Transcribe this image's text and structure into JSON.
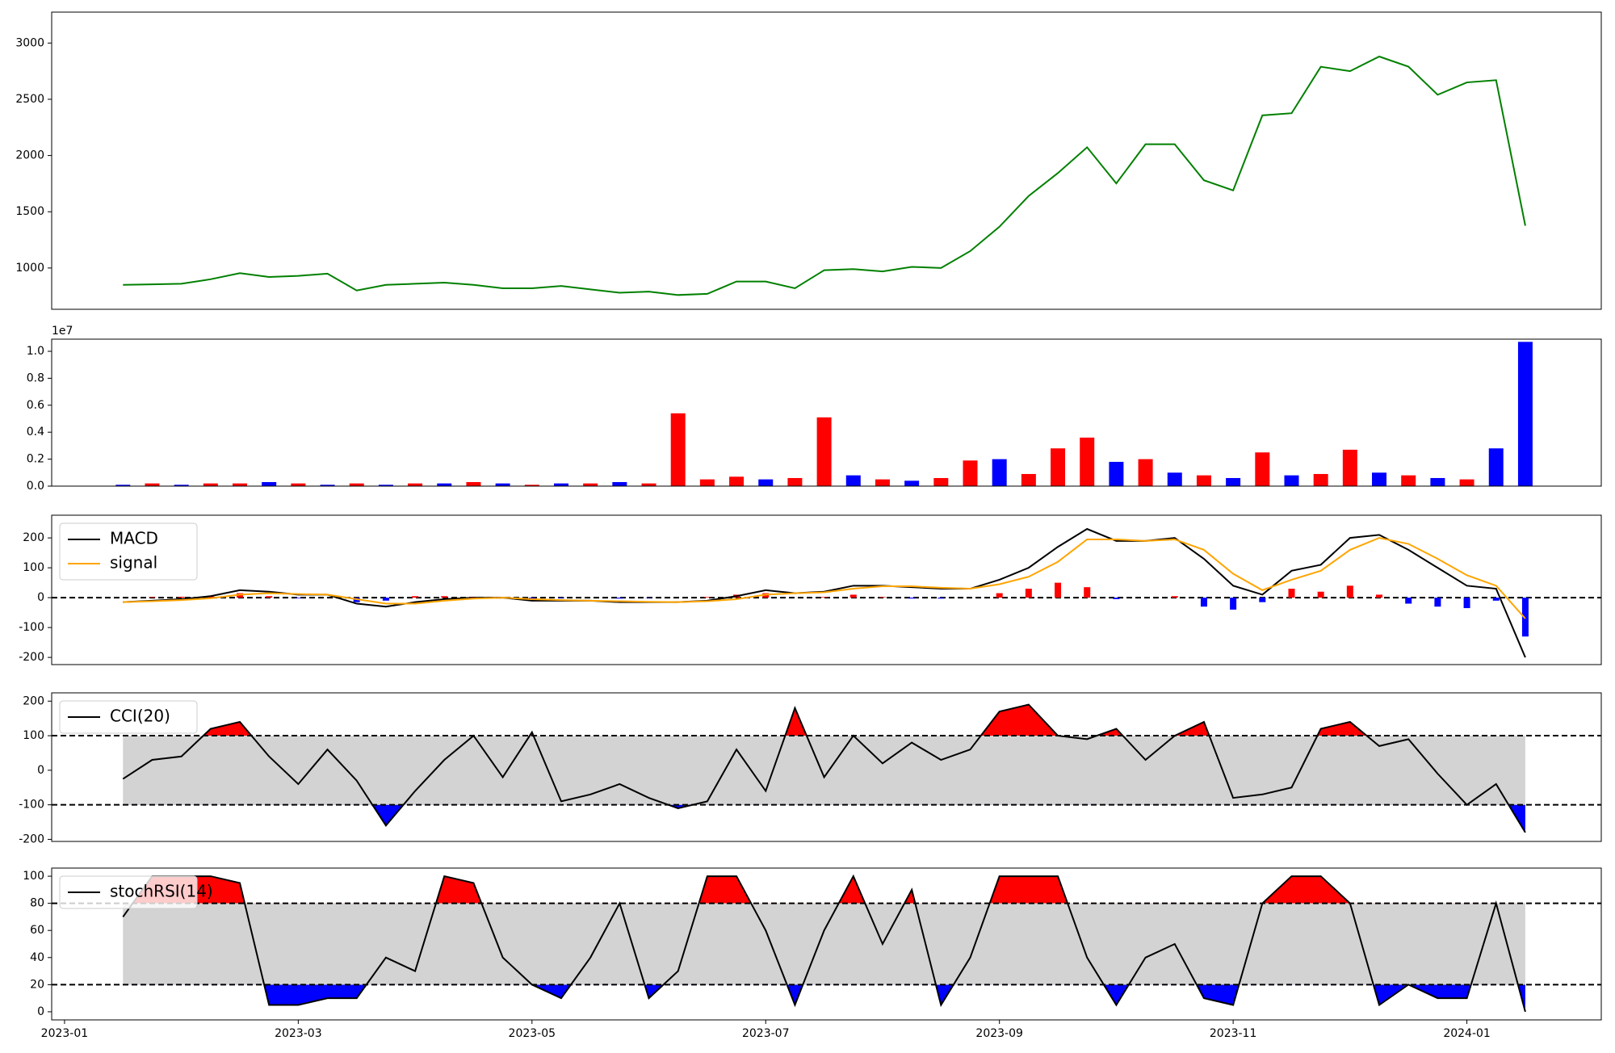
{
  "chart_data": [
    {
      "type": "line",
      "x": [
        0.5,
        0.75,
        1,
        1.25,
        1.5,
        1.75,
        2,
        2.25,
        2.5,
        2.75,
        3,
        3.25,
        3.5,
        3.75,
        4,
        4.25,
        4.5,
        4.75,
        5,
        5.25,
        5.5,
        5.75,
        6,
        6.25,
        6.5,
        6.75,
        7,
        7.25,
        7.5,
        7.75,
        8,
        8.25,
        8.5,
        8.75,
        9,
        9.25,
        9.5,
        9.75,
        10,
        10.25,
        10.5,
        10.75,
        11,
        11.25,
        11.5,
        11.75,
        12,
        12.25,
        12.5
      ],
      "xlim": [
        -0.11,
        13.15
      ],
      "series": [
        {
          "color": "green",
          "values": [
            850,
            855,
            860,
            900,
            954,
            920,
            930,
            950,
            800,
            850,
            860,
            870,
            850,
            820,
            820,
            840,
            810,
            780,
            790,
            760,
            770,
            880,
            880,
            820,
            980,
            990,
            970,
            1010,
            1000,
            1150,
            1367,
            1640,
            1844,
            2073,
            1752,
            2100,
            2100,
            1780,
            1690,
            2357,
            2376,
            2789,
            2750,
            2880,
            2790,
            2540,
            2650,
            2670,
            1376
          ]
        }
      ],
      "ylim": [
        633,
        3275
      ],
      "yticks": [
        1000,
        1500,
        2000,
        2500,
        3000
      ]
    },
    {
      "type": "bar",
      "values": [
        0.01,
        0.02,
        0.01,
        0.02,
        0.02,
        0.03,
        0.02,
        0.01,
        0.02,
        0.01,
        0.02,
        0.02,
        0.03,
        0.02,
        0.01,
        0.02,
        0.02,
        0.03,
        0.02,
        0.54,
        0.05,
        0.07,
        0.05,
        0.06,
        0.51,
        0.08,
        0.05,
        0.04,
        0.06,
        0.19,
        0.2,
        0.09,
        0.28,
        0.36,
        0.18,
        0.2,
        0.1,
        0.08,
        0.06,
        0.25,
        0.08,
        0.09,
        0.27,
        0.1,
        0.08,
        0.06,
        0.05,
        0.28,
        1.07
      ],
      "colors": [
        "blue",
        "red",
        "blue",
        "red",
        "red",
        "blue",
        "red",
        "blue",
        "red",
        "blue",
        "red",
        "blue",
        "red",
        "blue",
        "red",
        "blue",
        "red",
        "blue",
        "red",
        "red",
        "red",
        "red",
        "blue",
        "red",
        "red",
        "blue",
        "red",
        "blue",
        "red",
        "red",
        "blue",
        "red",
        "red",
        "red",
        "blue",
        "red",
        "blue",
        "red",
        "blue",
        "red",
        "blue",
        "red",
        "red",
        "blue",
        "red",
        "blue",
        "red",
        "blue",
        "blue"
      ],
      "offset_label": "1e7",
      "ylim": [
        0,
        1.09
      ],
      "yticks": [
        {
          "value": 0,
          "label": "0.0"
        },
        0.2,
        0.4,
        0.6,
        0.8,
        {
          "value": 1,
          "label": "1.0"
        }
      ]
    },
    {
      "type": "line",
      "series": [
        {
          "name": "MACD",
          "color": "black",
          "values": [
            -15,
            -10,
            -5,
            5,
            25,
            20,
            10,
            10,
            -20,
            -30,
            -15,
            -5,
            0,
            0,
            -10,
            -10,
            -10,
            -15,
            -15,
            -15,
            -10,
            5,
            25,
            15,
            20,
            40,
            40,
            35,
            30,
            30,
            60,
            100,
            170,
            230,
            190,
            190,
            200,
            130,
            40,
            10,
            90,
            110,
            200,
            210,
            160,
            100,
            40,
            30,
            -200
          ]
        },
        {
          "name": "signal",
          "color": "orange",
          "values": [
            -15,
            -12,
            -8,
            -2,
            10,
            15,
            12,
            10,
            -5,
            -20,
            -20,
            -10,
            -3,
            0,
            -5,
            -8,
            -10,
            -12,
            -14,
            -15,
            -12,
            -5,
            10,
            15,
            18,
            30,
            38,
            38,
            33,
            30,
            45,
            70,
            120,
            195,
            195,
            190,
            195,
            160,
            80,
            25,
            60,
            90,
            160,
            200,
            180,
            130,
            75,
            40,
            -70
          ]
        }
      ],
      "bars": {
        "positive_color": "red",
        "negative_color": "blue",
        "values": [
          0,
          2,
          3,
          7,
          15,
          5,
          -2,
          0,
          -15,
          -10,
          5,
          5,
          3,
          0,
          -5,
          -2,
          0,
          -3,
          -1,
          0,
          2,
          10,
          15,
          0,
          2,
          10,
          2,
          -3,
          -3,
          0,
          15,
          30,
          50,
          35,
          -5,
          0,
          5,
          -30,
          -40,
          -15,
          30,
          20,
          40,
          10,
          -20,
          -30,
          -35,
          -10,
          -130
        ]
      },
      "hlines": [
        0
      ],
      "legend": "upper left",
      "ylim": [
        -224,
        276
      ],
      "yticks": [
        -200,
        -100,
        0,
        100,
        200
      ]
    },
    {
      "type": "line",
      "series": [
        {
          "name": "CCI(20)",
          "color": "black",
          "values": [
            -25,
            30,
            40,
            120,
            140,
            40,
            -40,
            60,
            -30,
            -160,
            -60,
            30,
            100,
            -20,
            110,
            -90,
            -70,
            -40,
            -80,
            -110,
            -90,
            60,
            -60,
            180,
            -20,
            100,
            20,
            80,
            30,
            60,
            170,
            190,
            100,
            90,
            120,
            30,
            100,
            140,
            -80,
            -70,
            -50,
            120,
            140,
            70,
            90,
            -10,
            -100,
            -40,
            -180
          ]
        }
      ],
      "overbought": {
        "level": 100,
        "color": "red"
      },
      "oversold": {
        "level": -100,
        "color": "blue"
      },
      "band_color": "lightgray",
      "legend": "upper left",
      "ylim": [
        -206,
        224
      ],
      "yticks": [
        -200,
        -100,
        0,
        100,
        200
      ]
    },
    {
      "type": "line",
      "series": [
        {
          "name": "stochRSI(14)",
          "color": "black",
          "values": [
            70,
            100,
            100,
            100,
            95,
            5,
            5,
            10,
            10,
            40,
            30,
            100,
            95,
            40,
            20,
            10,
            40,
            80,
            10,
            30,
            100,
            100,
            60,
            5,
            60,
            100,
            50,
            90,
            5,
            40,
            100,
            100,
            100,
            40,
            5,
            40,
            50,
            10,
            5,
            80,
            100,
            100,
            80,
            5,
            20,
            10,
            10,
            80,
            0
          ]
        }
      ],
      "overbought": {
        "level": 80,
        "color": "red"
      },
      "oversold": {
        "level": 20,
        "color": "blue"
      },
      "band_color": "lightgray",
      "legend": "upper left",
      "ylim": [
        -6,
        106
      ],
      "yticks": [
        0,
        20,
        40,
        60,
        80,
        100
      ],
      "xticks": [
        {
          "value": 0,
          "label": "2023-01"
        },
        {
          "value": 2,
          "label": "2023-03"
        },
        {
          "value": 4,
          "label": "2023-05"
        },
        {
          "value": 6,
          "label": "2023-07"
        },
        {
          "value": 8,
          "label": "2023-09"
        },
        {
          "value": 10,
          "label": "2023-11"
        },
        {
          "value": 12,
          "label": "2024-01"
        }
      ]
    }
  ]
}
